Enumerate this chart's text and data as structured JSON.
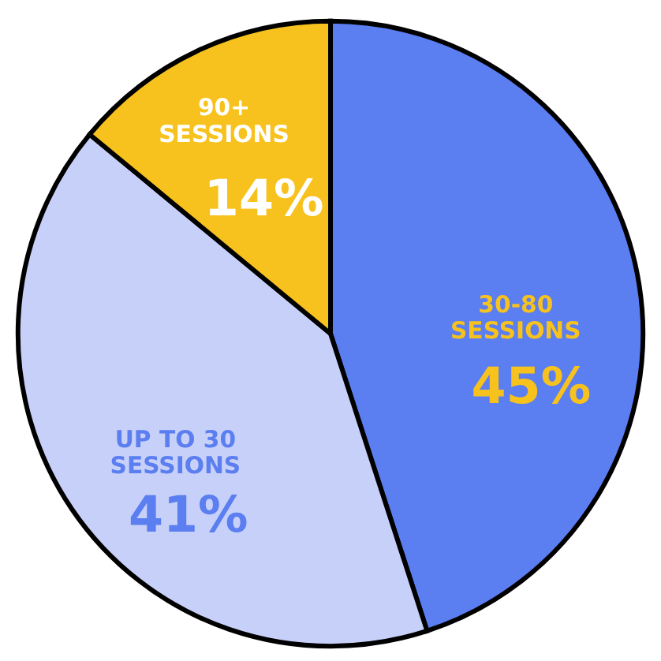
{
  "chart_data": {
    "type": "pie",
    "categories": [
      "30-80 SESSIONS",
      "UP TO 30 SESSIONS",
      "90+ SESSIONS"
    ],
    "values": [
      45,
      41,
      14
    ],
    "colors": [
      "#5b7ef0",
      "#c7d0f8",
      "#f7c21e"
    ],
    "value_labels": [
      "45%",
      "41%",
      "14%"
    ]
  }
}
